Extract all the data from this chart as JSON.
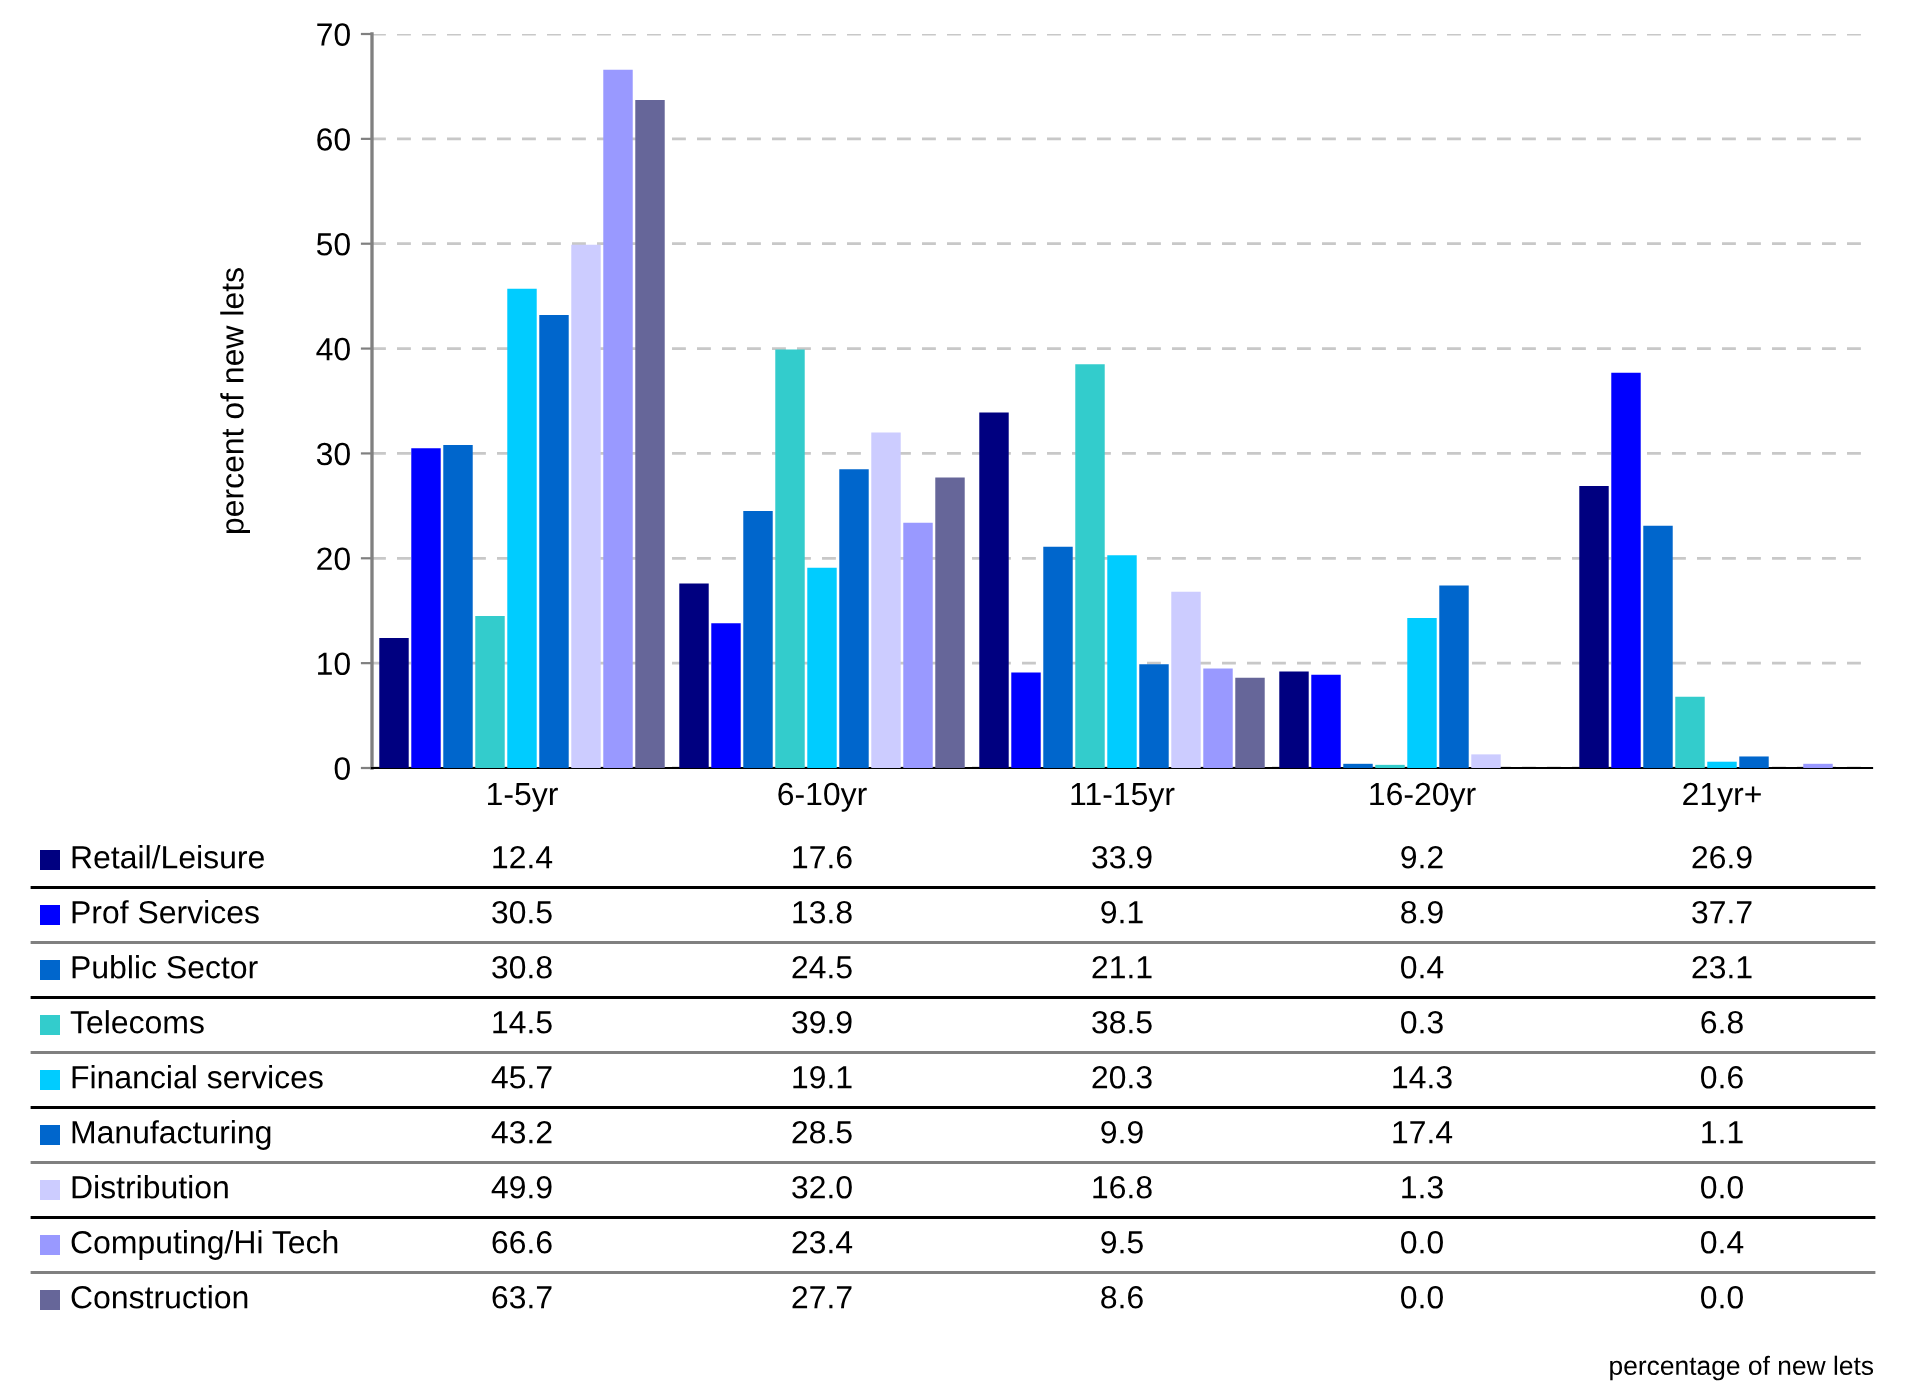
{
  "chart_data": {
    "type": "bar",
    "ylabel": "percent of new lets",
    "annotations": [
      "percentage of new lets"
    ],
    "categories": [
      "1-5yr",
      "6-10yr",
      "11-15yr",
      "16-20yr",
      "21yr+"
    ],
    "series": [
      {
        "name": "Retail/Leisure",
        "color": "#000080",
        "values": [
          12.4,
          17.6,
          33.9,
          9.2,
          26.9
        ],
        "value_labels": [
          "12.4",
          "17.6",
          "33.9",
          "9.2",
          "26.9"
        ]
      },
      {
        "name": "Prof Services",
        "color": "#0000ff",
        "values": [
          30.5,
          13.8,
          9.1,
          8.9,
          37.7
        ],
        "value_labels": [
          "30.5",
          "13.8",
          "9.1",
          "8.9",
          "37.7"
        ]
      },
      {
        "name": "Public Sector",
        "color": "#0066cc",
        "values": [
          30.8,
          24.5,
          21.1,
          0.4,
          23.1
        ],
        "value_labels": [
          "30.8",
          "24.5",
          "21.1",
          "0.4",
          "23.1"
        ]
      },
      {
        "name": "Telecoms",
        "color": "#33cccc",
        "values": [
          14.5,
          39.9,
          38.5,
          0.3,
          6.8
        ],
        "value_labels": [
          "14.5",
          "39.9",
          "38.5",
          "0.3",
          "6.8"
        ]
      },
      {
        "name": "Financial services",
        "color": "#00ccff",
        "values": [
          45.7,
          19.1,
          20.3,
          14.3,
          0.6
        ],
        "value_labels": [
          "45.7",
          "19.1",
          "20.3",
          "14.3",
          "0.6"
        ]
      },
      {
        "name": "Manufacturing",
        "color": "#0066cc",
        "values": [
          43.2,
          28.5,
          9.9,
          17.4,
          1.1
        ],
        "value_labels": [
          "43.2",
          "28.5",
          "9.9",
          "17.4",
          "1.1"
        ]
      },
      {
        "name": "Distribution",
        "color": "#ccccff",
        "values": [
          49.9,
          32.0,
          16.8,
          1.3,
          0.0
        ],
        "value_labels": [
          "49.9",
          "32.0",
          "16.8",
          "1.3",
          "0.0"
        ]
      },
      {
        "name": "Computing/Hi Tech",
        "color": "#9999ff",
        "values": [
          66.6,
          23.4,
          9.5,
          0.0,
          0.4
        ],
        "value_labels": [
          "66.6",
          "23.4",
          "9.5",
          "0.0",
          "0.4"
        ]
      },
      {
        "name": "Construction",
        "color": "#666699",
        "values": [
          63.7,
          27.7,
          8.6,
          0.0,
          0.0
        ],
        "value_labels": [
          "63.7",
          "27.7",
          "8.6",
          "0.0",
          "0.0"
        ]
      }
    ],
    "ylim": [
      0,
      70
    ],
    "yticks": [
      0,
      10,
      20,
      30,
      40,
      50,
      60,
      70
    ],
    "grid": "y",
    "legend": "bottom"
  }
}
